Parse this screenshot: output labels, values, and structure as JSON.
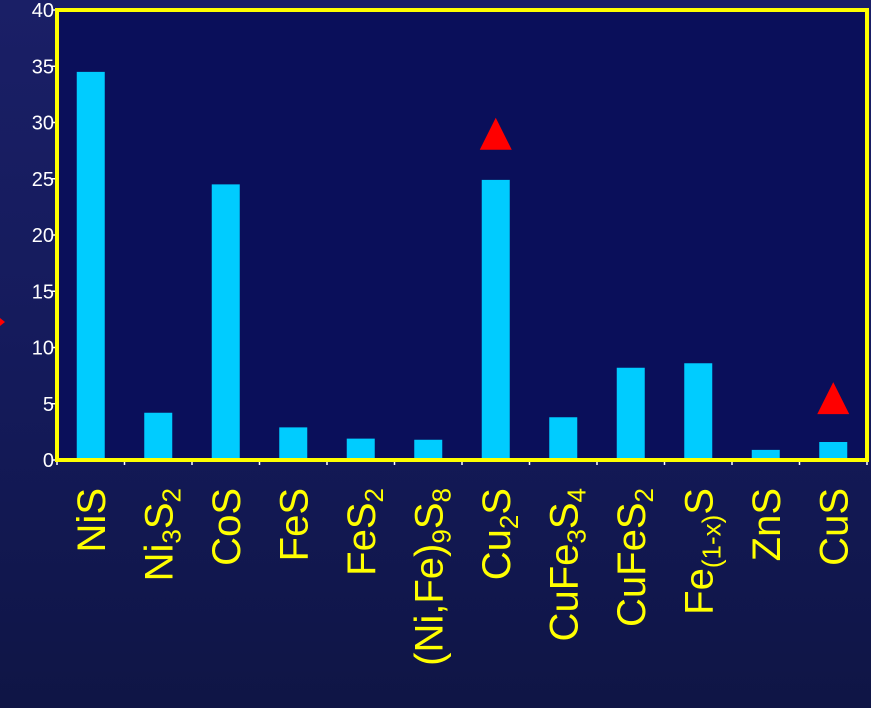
{
  "chart_data": {
    "type": "bar",
    "categories": [
      {
        "parts": [
          [
            "NiS",
            false
          ]
        ]
      },
      {
        "parts": [
          [
            "Ni",
            false
          ],
          [
            "3",
            true
          ],
          [
            "S",
            false
          ],
          [
            "2",
            true
          ]
        ]
      },
      {
        "parts": [
          [
            "CoS",
            false
          ]
        ]
      },
      {
        "parts": [
          [
            "FeS",
            false
          ]
        ]
      },
      {
        "parts": [
          [
            "FeS",
            false
          ],
          [
            "2",
            true
          ]
        ]
      },
      {
        "parts": [
          [
            "(Ni,Fe)",
            false
          ],
          [
            "9",
            true
          ],
          [
            "S",
            false
          ],
          [
            "8",
            true
          ]
        ]
      },
      {
        "parts": [
          [
            "Cu",
            false
          ],
          [
            "2",
            true
          ],
          [
            "S",
            false
          ]
        ]
      },
      {
        "parts": [
          [
            "CuFe",
            false
          ],
          [
            "3",
            true
          ],
          [
            "S",
            false
          ],
          [
            "4",
            true
          ]
        ]
      },
      {
        "parts": [
          [
            "CuFeS",
            false
          ],
          [
            "2",
            true
          ]
        ]
      },
      {
        "parts": [
          [
            "Fe",
            false
          ],
          [
            "(1-x)",
            true
          ],
          [
            "S",
            false
          ]
        ]
      },
      {
        "parts": [
          [
            "ZnS",
            false
          ]
        ]
      },
      {
        "parts": [
          [
            "CuS",
            false
          ]
        ]
      }
    ],
    "category_names": [
      "NiS",
      "Ni3S2",
      "CoS",
      "FeS",
      "FeS2",
      "(Ni,Fe)9S8",
      "Cu2S",
      "CuFe3S4",
      "CuFeS2",
      "Fe(1-x)S",
      "ZnS",
      "CuS"
    ],
    "values": [
      34.5,
      4.2,
      24.5,
      2.9,
      1.9,
      1.8,
      24.9,
      3.8,
      8.2,
      8.6,
      0.9,
      1.6
    ],
    "markers": [
      {
        "category": "Cu2S",
        "value": 29.0,
        "shape": "triangle"
      },
      {
        "category": "CuS",
        "value": 5.5,
        "shape": "triangle"
      }
    ],
    "ylim": [
      0,
      40
    ],
    "yticks": [
      0,
      5,
      10,
      15,
      20,
      25,
      30,
      35,
      40
    ],
    "title": "",
    "xlabel": "",
    "ylabel": "",
    "grid": false,
    "legend": "none",
    "colors": {
      "bar": "#00ccff",
      "marker": "#ff0000",
      "frame": "#ffff00",
      "plot_bg": "#0a0f5a",
      "axis": "#ffffff",
      "tick_text": "#ffffff",
      "category_text": "#ffff00"
    }
  }
}
